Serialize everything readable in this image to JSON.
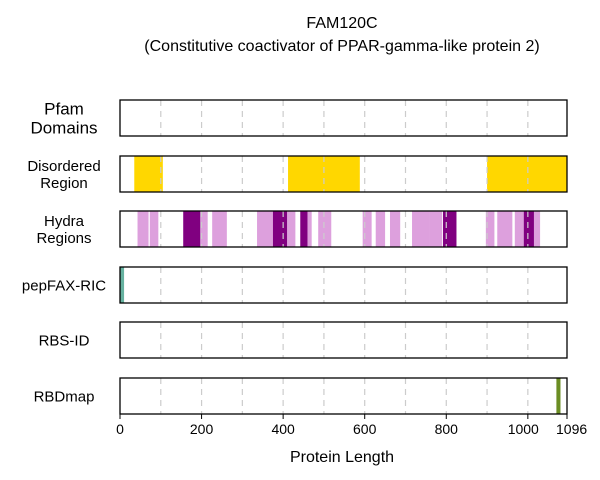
{
  "chart_data": {
    "type": "track",
    "title": "FAM120C",
    "subtitle": "(Constitutive coactivator of PPAR-gamma-like protein 2)",
    "xlabel": "Protein Length",
    "xlim": [
      0,
      1096
    ],
    "x_ticks": [
      "0",
      "200",
      "400",
      "600",
      "800",
      "1000",
      "1096"
    ],
    "x_tick_values": [
      0,
      200,
      400,
      600,
      800,
      1000,
      1096
    ],
    "grid_values": [
      100,
      200,
      300,
      400,
      500,
      600,
      700,
      800,
      900,
      1000
    ],
    "grid": true,
    "colors": {
      "disordered": "#FFD700",
      "hydra_light": "#DDA0DD",
      "hydra_dark": "#800080",
      "pepfax": "#66B2A0",
      "rbdmap": "#6B8E23",
      "grid": "#cccccc"
    },
    "tracks": [
      {
        "id": "pfam",
        "label_lines": [
          "Pfam",
          "Domains"
        ],
        "segments": []
      },
      {
        "id": "disordered",
        "label_lines": [
          "Disordered",
          "Region"
        ],
        "segments": [
          {
            "start": 35,
            "end": 105,
            "color": "#FFD700"
          },
          {
            "start": 412,
            "end": 588,
            "color": "#FFD700"
          },
          {
            "start": 900,
            "end": 1096,
            "color": "#FFD700"
          }
        ]
      },
      {
        "id": "hydra",
        "label_lines": [
          "Hydra",
          "Regions"
        ],
        "segments": [
          {
            "start": 43,
            "end": 70,
            "color": "#DDA0DD"
          },
          {
            "start": 73,
            "end": 94,
            "color": "#DDA0DD"
          },
          {
            "start": 155,
            "end": 197,
            "color": "#800080"
          },
          {
            "start": 197,
            "end": 215,
            "color": "#DDA0DD"
          },
          {
            "start": 226,
            "end": 262,
            "color": "#DDA0DD"
          },
          {
            "start": 336,
            "end": 375,
            "color": "#DDA0DD"
          },
          {
            "start": 375,
            "end": 410,
            "color": "#800080"
          },
          {
            "start": 410,
            "end": 430,
            "color": "#DDA0DD"
          },
          {
            "start": 442,
            "end": 460,
            "color": "#800080"
          },
          {
            "start": 460,
            "end": 470,
            "color": "#DDA0DD"
          },
          {
            "start": 486,
            "end": 518,
            "color": "#DDA0DD"
          },
          {
            "start": 595,
            "end": 617,
            "color": "#DDA0DD"
          },
          {
            "start": 627,
            "end": 650,
            "color": "#DDA0DD"
          },
          {
            "start": 662,
            "end": 687,
            "color": "#DDA0DD"
          },
          {
            "start": 716,
            "end": 760,
            "color": "#DDA0DD"
          },
          {
            "start": 760,
            "end": 790,
            "color": "#DDA0DD"
          },
          {
            "start": 792,
            "end": 825,
            "color": "#800080"
          },
          {
            "start": 897,
            "end": 918,
            "color": "#DDA0DD"
          },
          {
            "start": 925,
            "end": 962,
            "color": "#DDA0DD"
          },
          {
            "start": 968,
            "end": 990,
            "color": "#DDA0DD"
          },
          {
            "start": 990,
            "end": 1015,
            "color": "#800080"
          },
          {
            "start": 1015,
            "end": 1030,
            "color": "#DDA0DD"
          }
        ]
      },
      {
        "id": "pepfax",
        "label_lines": [
          "pepFAX-RIC"
        ],
        "segments": [
          {
            "start": 0,
            "end": 10,
            "color": "#66B2A0"
          }
        ]
      },
      {
        "id": "rbsid",
        "label_lines": [
          "RBS-ID"
        ],
        "segments": []
      },
      {
        "id": "rbdmap",
        "label_lines": [
          "RBDmap"
        ],
        "segments": [
          {
            "start": 1070,
            "end": 1080,
            "color": "#6B8E23"
          }
        ]
      }
    ]
  }
}
